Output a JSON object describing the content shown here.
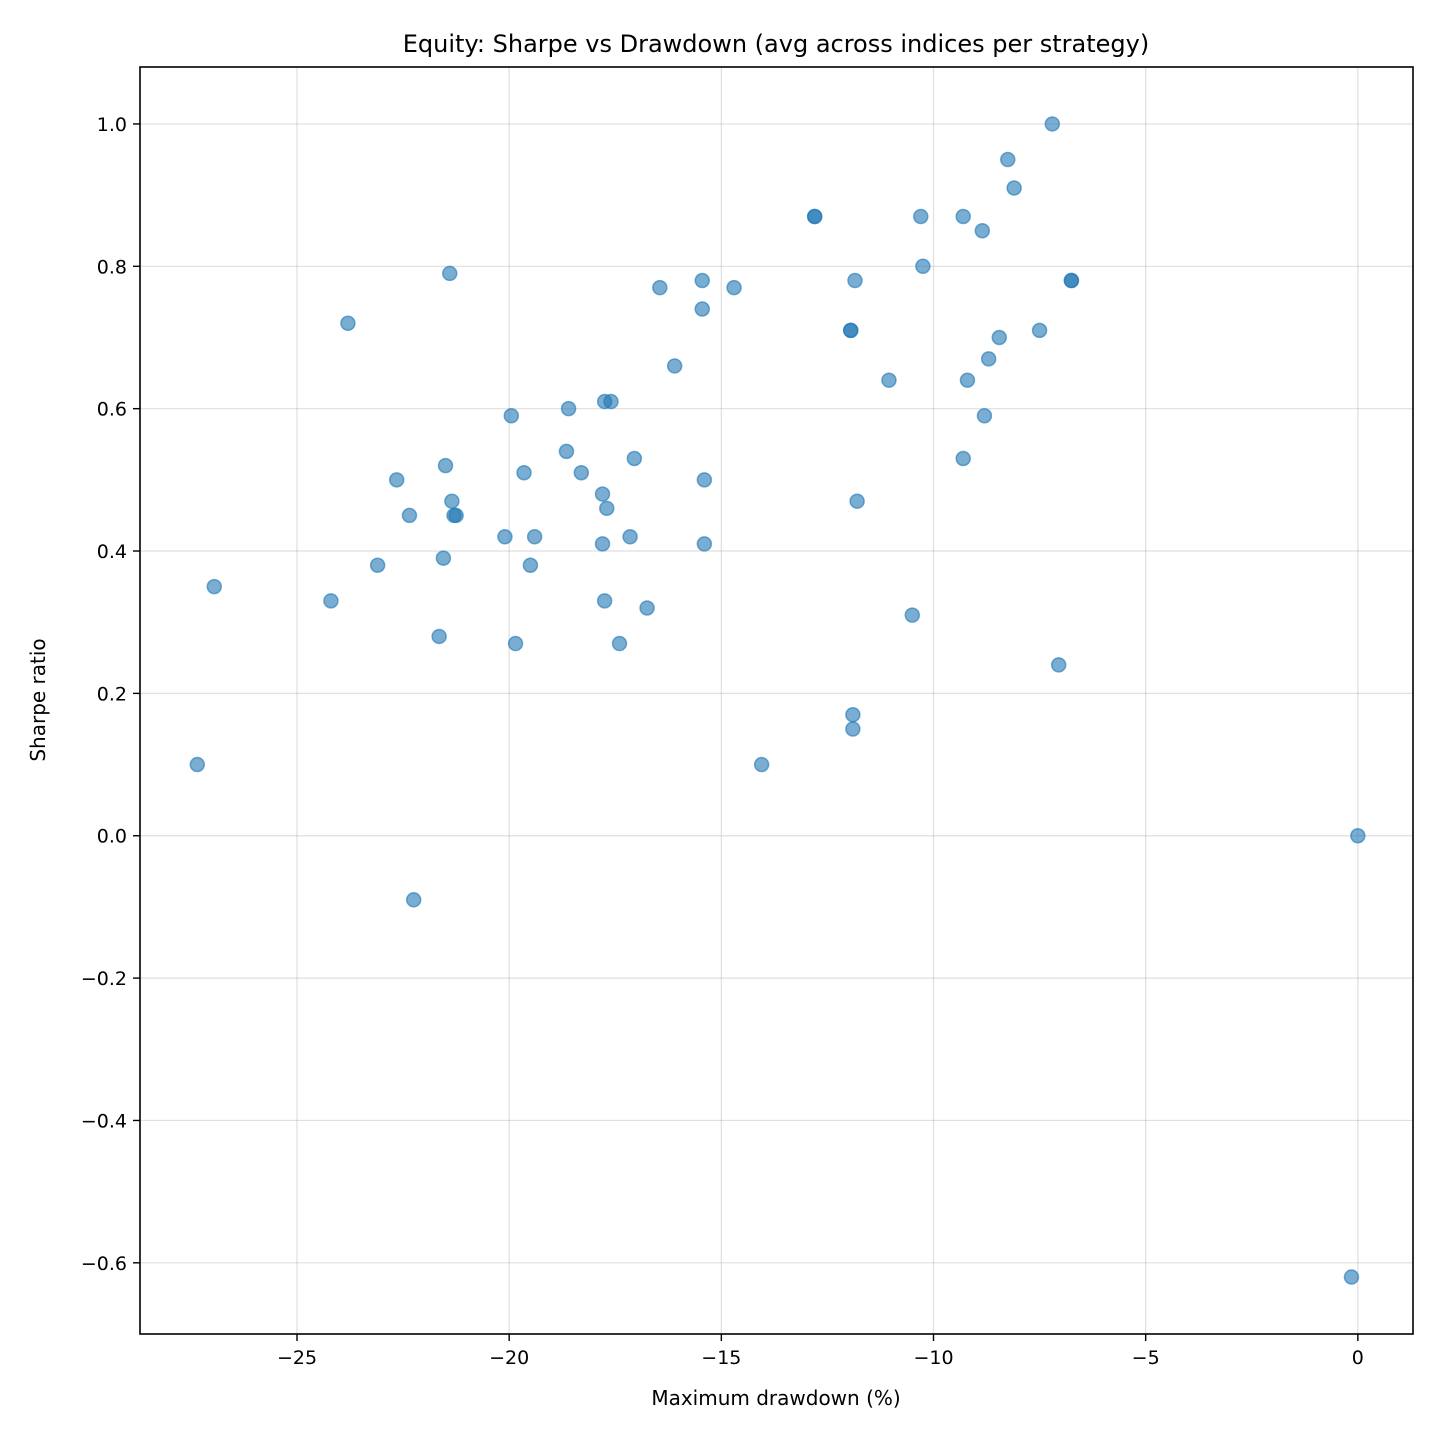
{
  "chart_data": {
    "type": "scatter",
    "title": "Equity: Sharpe vs Drawdown (avg across indices per strategy)",
    "xlabel": "Maximum drawdown (%)",
    "ylabel": "Sharpe ratio",
    "xlim": [
      -28.7,
      1.3
    ],
    "ylim": [
      -0.7,
      1.08
    ],
    "xticks": [
      -25,
      -20,
      -15,
      -10,
      -5,
      0
    ],
    "xtick_labels": [
      "−25",
      "−20",
      "−15",
      "−10",
      "−5",
      "0"
    ],
    "yticks": [
      -0.6,
      -0.4,
      -0.2,
      0.0,
      0.2,
      0.4,
      0.6,
      0.8,
      1.0
    ],
    "ytick_labels": [
      "−0.6",
      "−0.4",
      "−0.2",
      "0.0",
      "0.2",
      "0.4",
      "0.6",
      "0.8",
      "1.0"
    ],
    "grid": true,
    "legend": "none",
    "marker_color": "#1f77b4",
    "marker_alpha": 0.6,
    "points": [
      {
        "x": -7.2,
        "y": 1.0
      },
      {
        "x": -8.25,
        "y": 0.95
      },
      {
        "x": -8.1,
        "y": 0.91
      },
      {
        "x": -12.8,
        "y": 0.87
      },
      {
        "x": -12.8,
        "y": 0.87
      },
      {
        "x": -10.3,
        "y": 0.87
      },
      {
        "x": -9.3,
        "y": 0.87
      },
      {
        "x": -8.85,
        "y": 0.85
      },
      {
        "x": -10.25,
        "y": 0.8
      },
      {
        "x": -21.4,
        "y": 0.79
      },
      {
        "x": -15.45,
        "y": 0.78
      },
      {
        "x": -11.85,
        "y": 0.78
      },
      {
        "x": -6.75,
        "y": 0.78
      },
      {
        "x": -6.75,
        "y": 0.78
      },
      {
        "x": -16.45,
        "y": 0.77
      },
      {
        "x": -14.7,
        "y": 0.77
      },
      {
        "x": -15.45,
        "y": 0.74
      },
      {
        "x": -23.8,
        "y": 0.72
      },
      {
        "x": -11.95,
        "y": 0.71
      },
      {
        "x": -11.95,
        "y": 0.71
      },
      {
        "x": -7.5,
        "y": 0.71
      },
      {
        "x": -8.45,
        "y": 0.7
      },
      {
        "x": -8.7,
        "y": 0.67
      },
      {
        "x": -16.1,
        "y": 0.66
      },
      {
        "x": -11.05,
        "y": 0.64
      },
      {
        "x": -9.2,
        "y": 0.64
      },
      {
        "x": -17.75,
        "y": 0.61
      },
      {
        "x": -17.6,
        "y": 0.61
      },
      {
        "x": -18.6,
        "y": 0.6
      },
      {
        "x": -19.95,
        "y": 0.59
      },
      {
        "x": -8.8,
        "y": 0.59
      },
      {
        "x": -18.65,
        "y": 0.54
      },
      {
        "x": -17.05,
        "y": 0.53
      },
      {
        "x": -9.3,
        "y": 0.53
      },
      {
        "x": -21.5,
        "y": 0.52
      },
      {
        "x": -19.65,
        "y": 0.51
      },
      {
        "x": -18.3,
        "y": 0.51
      },
      {
        "x": -22.65,
        "y": 0.5
      },
      {
        "x": -15.4,
        "y": 0.5
      },
      {
        "x": -17.8,
        "y": 0.48
      },
      {
        "x": -21.35,
        "y": 0.47
      },
      {
        "x": -11.8,
        "y": 0.47
      },
      {
        "x": -17.7,
        "y": 0.46
      },
      {
        "x": -22.35,
        "y": 0.45
      },
      {
        "x": -21.3,
        "y": 0.45
      },
      {
        "x": -21.25,
        "y": 0.45
      },
      {
        "x": -20.1,
        "y": 0.42
      },
      {
        "x": -19.4,
        "y": 0.42
      },
      {
        "x": -17.15,
        "y": 0.42
      },
      {
        "x": -17.8,
        "y": 0.41
      },
      {
        "x": -15.4,
        "y": 0.41
      },
      {
        "x": -21.55,
        "y": 0.39
      },
      {
        "x": -23.1,
        "y": 0.38
      },
      {
        "x": -19.5,
        "y": 0.38
      },
      {
        "x": -26.95,
        "y": 0.35
      },
      {
        "x": -24.2,
        "y": 0.33
      },
      {
        "x": -17.75,
        "y": 0.33
      },
      {
        "x": -16.75,
        "y": 0.32
      },
      {
        "x": -10.5,
        "y": 0.31
      },
      {
        "x": -21.65,
        "y": 0.28
      },
      {
        "x": -19.85,
        "y": 0.27
      },
      {
        "x": -17.4,
        "y": 0.27
      },
      {
        "x": -7.05,
        "y": 0.24
      },
      {
        "x": -11.9,
        "y": 0.17
      },
      {
        "x": -11.9,
        "y": 0.15
      },
      {
        "x": -27.35,
        "y": 0.1
      },
      {
        "x": -14.05,
        "y": 0.1
      },
      {
        "x": 0.0,
        "y": 0.0
      },
      {
        "x": -22.25,
        "y": -0.09
      },
      {
        "x": -0.15,
        "y": -0.62
      }
    ]
  }
}
